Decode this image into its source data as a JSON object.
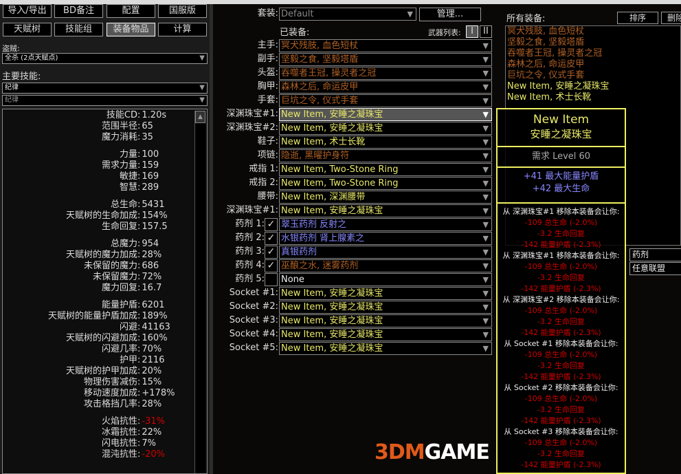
{
  "nav": {
    "row1": [
      "导入/导出",
      "BD备注",
      "配置",
      "国服版"
    ],
    "row2": [
      "天赋树",
      "技能组",
      "装备物品",
      "计算"
    ],
    "active": "装备物品"
  },
  "bandit": {
    "label": "盗贼:",
    "value": "全杀 (2点天赋点)"
  },
  "main_skill": {
    "label": "主要技能:",
    "value": "纪律",
    "sub_value": "纪律"
  },
  "stats": [
    [
      [
        "技能CD",
        "1.20s"
      ],
      [
        "范围半径",
        "65"
      ],
      [
        "魔力消耗",
        "35"
      ]
    ],
    [
      [
        "力量",
        "100"
      ],
      [
        "需求力量",
        "159"
      ],
      [
        "敏捷",
        "169"
      ],
      [
        "智慧",
        "289"
      ]
    ],
    [
      [
        "总生命",
        "5431"
      ],
      [
        "天赋树的生命加成",
        "154%"
      ],
      [
        "生命回复",
        "157.5"
      ]
    ],
    [
      [
        "总魔力",
        "954"
      ],
      [
        "天赋树的魔力加成",
        "28%"
      ],
      [
        "未保留的魔力",
        "686"
      ],
      [
        "未保留魔力",
        "72%"
      ],
      [
        "魔力回复",
        "16.7"
      ]
    ],
    [
      [
        "能量护盾",
        "6201"
      ],
      [
        "天赋树的能量护盾加成",
        "189%"
      ],
      [
        "闪避",
        "41163"
      ],
      [
        "天赋树的闪避加成",
        "160%"
      ],
      [
        "闪避几率",
        "70%"
      ],
      [
        "护甲",
        "2116"
      ],
      [
        "天赋树的护甲加成",
        "20%"
      ],
      [
        "物理伤害减伤",
        "15%"
      ],
      [
        "移动速度加成",
        "+178%"
      ],
      [
        "攻击格挡几率",
        "28%"
      ]
    ],
    [
      [
        "火焰抗性",
        "-31%"
      ],
      [
        "冰霜抗性",
        "22%"
      ],
      [
        "闪电抗性",
        "7%"
      ],
      [
        "混沌抗性",
        "-20%"
      ]
    ]
  ],
  "negative_color": "#d20000",
  "itemset": {
    "label": "套装:",
    "value": "Default",
    "manage": "管理..."
  },
  "equipped_label": "已装备:",
  "weapon_list": {
    "label": "武器列表:",
    "options": [
      "I",
      "II"
    ]
  },
  "slots": [
    {
      "label": "主手:",
      "item": "冥犬残肢, 血色短杖",
      "rarity": "unique"
    },
    {
      "label": "副手:",
      "item": "坚毅之食, 坚毅塔盾",
      "rarity": "unique"
    },
    {
      "label": "头盔:",
      "item": "吞噬者王冠, 操灵者之冠",
      "rarity": "unique"
    },
    {
      "label": "胸甲:",
      "item": "森林之后, 命运皮甲",
      "rarity": "unique"
    },
    {
      "label": "手套:",
      "item": "巨坑之令, 仪式手套",
      "rarity": "unique"
    },
    {
      "label": "深渊珠宝#1:",
      "item": "New Item, 安睡之凝珠宝",
      "rarity": "rare",
      "selected": true
    },
    {
      "label": "深渊珠宝#2:",
      "item": "New Item, 安睡之凝珠宝",
      "rarity": "rare"
    },
    {
      "label": "鞋子:",
      "item": "New Item, 术士长靴",
      "rarity": "rare"
    },
    {
      "label": "项链:",
      "item": "隐逝, 黑曜护身符",
      "rarity": "unique"
    },
    {
      "label": "戒指 1:",
      "item": "New Item, Two-Stone Ring",
      "rarity": "rare"
    },
    {
      "label": "戒指 2:",
      "item": "New Item, Two-Stone Ring",
      "rarity": "rare"
    },
    {
      "label": "腰带:",
      "item": "New Item, 深渊腰带",
      "rarity": "rare"
    },
    {
      "label": "深渊珠宝#1:",
      "item": "New Item, 安睡之凝珠宝",
      "rarity": "rare"
    },
    {
      "label": "药剂 1:",
      "item": "翠玉药剂 反射之",
      "rarity": "magic",
      "checked": true
    },
    {
      "label": "药剂 2:",
      "item": "水银药剂 肾上腺素之",
      "rarity": "magic",
      "checked": true
    },
    {
      "label": "药剂 3:",
      "item": "真银药剂",
      "rarity": "magic",
      "checked": true
    },
    {
      "label": "药剂 4:",
      "item": "巫酿之水, 迷雾药剂",
      "rarity": "unique",
      "checked": true
    },
    {
      "label": "药剂 5:",
      "item": "None",
      "rarity": "normal",
      "checked": false
    },
    {
      "label": "Socket #1:",
      "item": "New Item, 安睡之凝珠宝",
      "rarity": "rare"
    },
    {
      "label": "Socket #2:",
      "item": "New Item, 安睡之凝珠宝",
      "rarity": "rare"
    },
    {
      "label": "Socket #3:",
      "item": "New Item, 安睡之凝珠宝",
      "rarity": "rare"
    },
    {
      "label": "Socket #4:",
      "item": "New Item, 安睡之凝珠宝",
      "rarity": "rare"
    },
    {
      "label": "Socket #5:",
      "item": "New Item, 安睡之凝珠宝",
      "rarity": "rare"
    }
  ],
  "all_items": {
    "label": "所有装备:",
    "sort": "排序",
    "delete": "删除",
    "items": [
      {
        "name": "冥犬残肢, 血色短杖",
        "rarity": "unique"
      },
      {
        "name": "坚毅之食, 坚毅塔盾",
        "rarity": "unique"
      },
      {
        "name": "吞噬者王冠, 操灵者之冠",
        "rarity": "unique"
      },
      {
        "name": "森林之后, 命运皮甲",
        "rarity": "unique"
      },
      {
        "name": "巨坑之令, 仪式手套",
        "rarity": "unique"
      },
      {
        "name": "New Item, 安睡之凝珠宝",
        "rarity": "rare"
      },
      {
        "name": "New Item, 术士长靴",
        "rarity": "rare"
      }
    ]
  },
  "filters": {
    "type": "药剂",
    "league": "任意联盟"
  },
  "tooltip": {
    "title": "New Item",
    "subtitle": "安睡之凝珠宝",
    "requirement": "需求 Level 60",
    "mods": [
      "+41 最大能量护盾",
      "+42 最大生命"
    ],
    "compare": [
      {
        "header": "从 深渊珠宝#1 移除本装备会让你:",
        "lines": [
          "-109 总生命 (-2.0%)",
          "-3.2 生命回复",
          "-142 能量护盾 (-2.3%)"
        ]
      },
      {
        "header": "从 深渊珠宝#1 移除本装备会让你:",
        "lines": [
          "-109 总生命 (-2.0%)",
          "-3.2 生命回复",
          "-142 能量护盾 (-2.3%)"
        ]
      },
      {
        "header": "从 深渊珠宝#2 移除本装备会让你:",
        "lines": [
          "-109 总生命 (-2.0%)",
          "-3.2 生命回复",
          "-142 能量护盾 (-2.3%)"
        ]
      },
      {
        "header": "从 Socket #1 移除本装备会让你:",
        "lines": [
          "-109 总生命 (-2.0%)",
          "-3.2 生命回复",
          "-142 能量护盾 (-2.3%)"
        ]
      },
      {
        "header": "从 Socket #2 移除本装备会让你:",
        "lines": [
          "-109 总生命 (-2.0%)",
          "-3.2 生命回复",
          "-142 能量护盾 (-2.3%)"
        ]
      },
      {
        "header": "从 Socket #3 移除本装备会让你:",
        "lines": [
          "-109 总生命 (-2.0%)",
          "-3.2 生命回复",
          "-142 能量护盾 (-2.3%)"
        ]
      }
    ]
  },
  "watermark": {
    "a": "3DM",
    "b": "GAME"
  },
  "colors": {
    "unique": "#af6025",
    "rare": "#e8e86a",
    "magic": "#8888ff",
    "tooltip_border": "#f0f060"
  }
}
